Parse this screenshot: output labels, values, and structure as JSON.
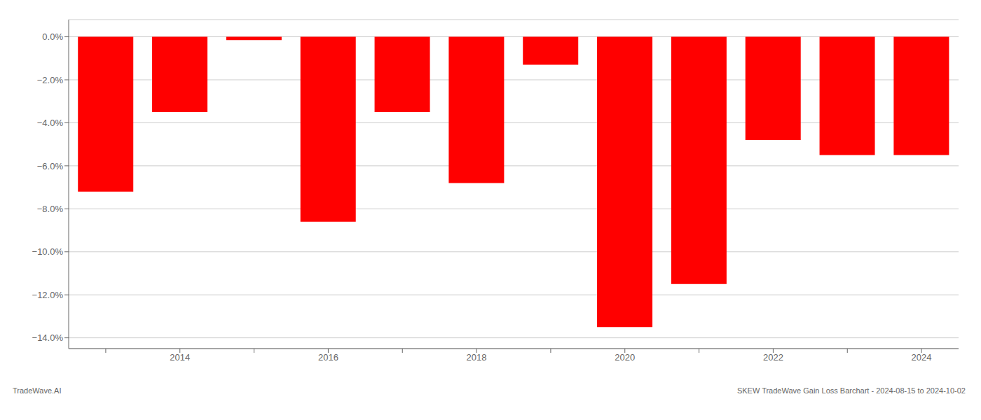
{
  "chart_data": {
    "type": "bar",
    "categories": [
      null,
      "2014",
      null,
      "2016",
      null,
      "2018",
      null,
      "2020",
      null,
      "2022",
      null,
      "2024"
    ],
    "values": [
      -7.2,
      -3.5,
      -0.15,
      -8.6,
      -3.5,
      -6.8,
      -1.3,
      -13.5,
      -11.5,
      -4.8,
      -5.5,
      -5.5
    ],
    "color": "#ff0000",
    "ylim": [
      -14.5,
      0.8
    ],
    "yticks": [
      {
        "value": 0.0,
        "label": "0.0%"
      },
      {
        "value": -2.0,
        "label": "−2.0%"
      },
      {
        "value": -4.0,
        "label": "−4.0%"
      },
      {
        "value": -6.0,
        "label": "−6.0%"
      },
      {
        "value": -8.0,
        "label": "−8.0%"
      },
      {
        "value": -10.0,
        "label": "−10.0%"
      },
      {
        "value": -12.0,
        "label": "−12.0%"
      },
      {
        "value": -14.0,
        "label": "−14.0%"
      }
    ],
    "grid": true,
    "annotations": [
      "TradeWave.AI",
      "SKEW TradeWave Gain Loss Barchart - 2024-08-15 to 2024-10-02"
    ]
  }
}
